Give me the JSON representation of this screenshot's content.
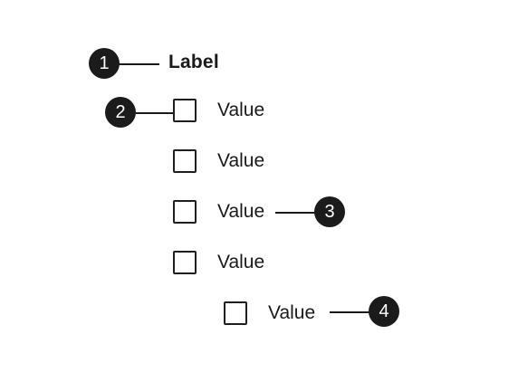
{
  "diagram": {
    "group_label": "Label",
    "options": [
      {
        "label": "Value",
        "checked": false,
        "nested": false
      },
      {
        "label": "Value",
        "checked": false,
        "nested": false
      },
      {
        "label": "Value",
        "checked": false,
        "nested": false
      },
      {
        "label": "Value",
        "checked": false,
        "nested": false
      },
      {
        "label": "Value",
        "checked": false,
        "nested": true
      }
    ],
    "callouts": [
      "1",
      "2",
      "3",
      "4"
    ]
  }
}
